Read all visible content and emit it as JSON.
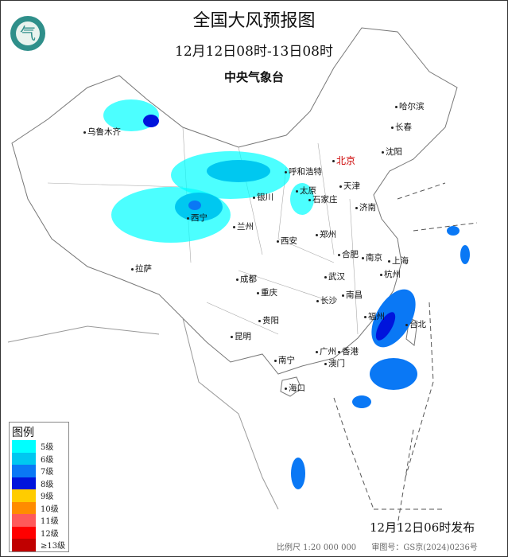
{
  "title": "全国大风预报图",
  "subtitle": "12月12日08时-13日08时",
  "organization": "中央气象台",
  "logo_text": "气",
  "legend": {
    "title": "图例",
    "items": [
      {
        "label": "5级",
        "color": "#00ffff"
      },
      {
        "label": "6级",
        "color": "#00c8f0"
      },
      {
        "label": "7级",
        "color": "#0a78f5"
      },
      {
        "label": "8级",
        "color": "#0014dc"
      },
      {
        "label": "9级",
        "color": "#ffcc00"
      },
      {
        "label": "10级",
        "color": "#ff8c00"
      },
      {
        "label": "11级",
        "color": "#ff5a5a"
      },
      {
        "label": "12级",
        "color": "#ff0000"
      },
      {
        "label": "≥13级",
        "color": "#c00000"
      }
    ]
  },
  "cities": [
    "乌鲁木齐",
    "拉萨",
    "西宁",
    "兰州",
    "银川",
    "呼和浩特",
    "北京",
    "天津",
    "太原",
    "石家庄",
    "济南",
    "郑州",
    "西安",
    "成都",
    "重庆",
    "贵阳",
    "昆明",
    "南宁",
    "海口",
    "广州",
    "香港",
    "澳门",
    "武汉",
    "长沙",
    "南昌",
    "合肥",
    "南京",
    "上海",
    "杭州",
    "福州",
    "台北",
    "哈尔滨",
    "长春",
    "沈阳"
  ],
  "issued": "12月12日06时发布",
  "scale": "比例尺 1:20 000 000",
  "approval_number": "审图号：GS京(2024)0236号",
  "colors": {
    "land": "#ffffff",
    "border": "#666666",
    "river": "#7fd0e8"
  }
}
